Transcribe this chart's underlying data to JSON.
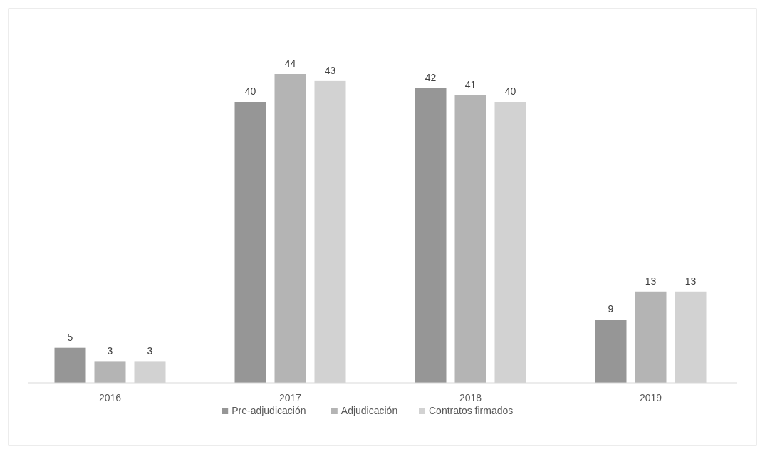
{
  "chart_data": {
    "type": "bar",
    "categories": [
      "2016",
      "2017",
      "2018",
      "2019"
    ],
    "series": [
      {
        "name": "Pre-adjudicación",
        "color": "#969696",
        "values": [
          5,
          40,
          42,
          9
        ]
      },
      {
        "name": "Adjudicación",
        "color": "#b4b4b4",
        "values": [
          3,
          44,
          41,
          13
        ]
      },
      {
        "name": "Contratos firmados",
        "color": "#d2d2d2",
        "values": [
          3,
          43,
          40,
          13
        ]
      }
    ],
    "data_labels": true,
    "legend": "bottom"
  }
}
